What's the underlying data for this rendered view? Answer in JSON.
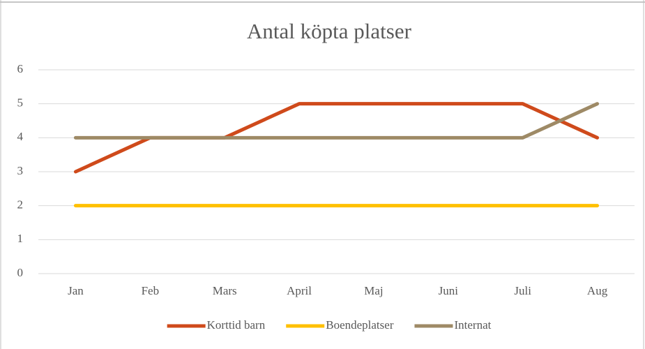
{
  "chart_data": {
    "type": "line",
    "title": "Antal köpta platser",
    "categories": [
      "Jan",
      "Feb",
      "Mars",
      "April",
      "Maj",
      "Juni",
      "Juli",
      "Aug"
    ],
    "series": [
      {
        "name": "Korttid barn",
        "color": "#cf4a1b",
        "values": [
          3,
          4,
          4,
          5,
          5,
          5,
          5,
          4
        ]
      },
      {
        "name": "Boendeplatser",
        "color": "#ffc000",
        "values": [
          2,
          2,
          2,
          2,
          2,
          2,
          2,
          2
        ]
      },
      {
        "name": "Internat",
        "color": "#9e8a66",
        "values": [
          4,
          4,
          4,
          4,
          4,
          4,
          4,
          5
        ]
      }
    ],
    "ylim": [
      0,
      6
    ],
    "yticks": [
      0,
      1,
      2,
      3,
      4,
      5,
      6
    ],
    "grid": true,
    "legend": "bottom"
  }
}
